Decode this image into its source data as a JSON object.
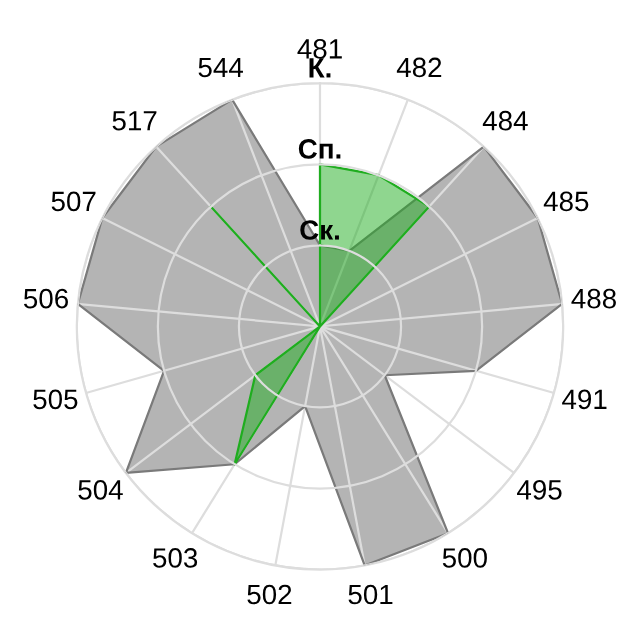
{
  "chart_data": {
    "type": "radar",
    "categories": [
      "481",
      "482",
      "484",
      "485",
      "488",
      "491",
      "495",
      "500",
      "501",
      "502",
      "503",
      "504",
      "505",
      "506",
      "507",
      "517",
      "544"
    ],
    "ylim": [
      0,
      3
    ],
    "yticks": [
      {
        "value": 1,
        "label": "Ск."
      },
      {
        "value": 2,
        "label": "Сп."
      },
      {
        "value": 3,
        "label": "К."
      }
    ],
    "grid": true,
    "legend": false,
    "series": [
      {
        "color": "#b4b4b4",
        "values": [
          1,
          1,
          3,
          3,
          3,
          2,
          1,
          3,
          3,
          1,
          2,
          3,
          2,
          3,
          3,
          3,
          3
        ]
      },
      {
        "color": "#1fad1f",
        "values": [
          2,
          2,
          2,
          0,
          0,
          0,
          0,
          0,
          0,
          0,
          2,
          1,
          0,
          0,
          0,
          2,
          0
        ]
      }
    ]
  }
}
